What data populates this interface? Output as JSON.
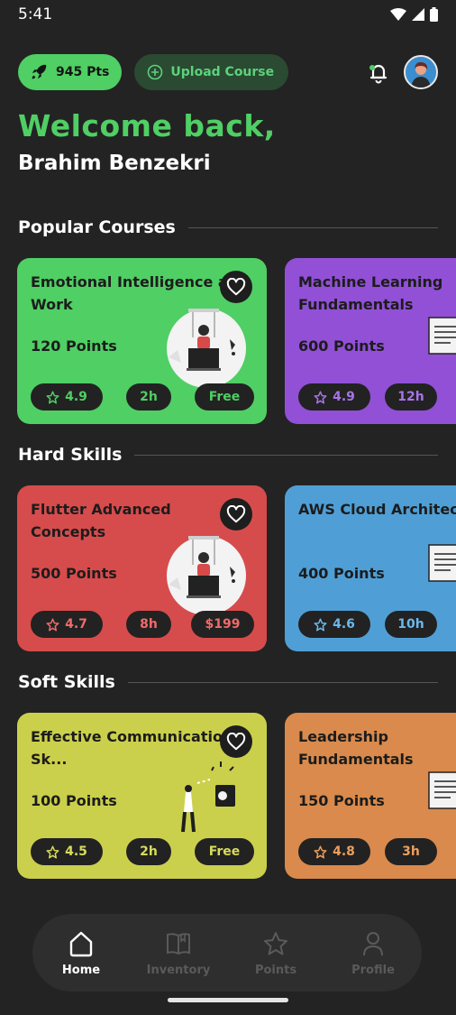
{
  "status": {
    "time": "5:41"
  },
  "header": {
    "points": "945 Pts",
    "upload_label": "Upload Course"
  },
  "welcome": {
    "greeting": "Welcome back,",
    "name": "Brahim Benzekri"
  },
  "sections": [
    {
      "title": "Popular Courses",
      "cards": [
        {
          "title": "Emotional Intelligence at Work",
          "points": "120 Points",
          "rating": "4.9",
          "duration": "2h",
          "price": "Free",
          "color": "#4fcf64",
          "badge_text": "#4fcf64"
        },
        {
          "title": "Machine Learning Fundamentals",
          "points": "600 Points",
          "rating": "4.9",
          "duration": "12h",
          "price": "",
          "color": "#9150d6",
          "badge_text": "#a874e8"
        }
      ]
    },
    {
      "title": "Hard Skills",
      "cards": [
        {
          "title": "Flutter Advanced Concepts",
          "points": "500 Points",
          "rating": "4.7",
          "duration": "8h",
          "price": "$199",
          "color": "#d64c4c",
          "badge_text": "#f16a6a"
        },
        {
          "title": "AWS Cloud Architecture",
          "points": "400 Points",
          "rating": "4.6",
          "duration": "10h",
          "price": "",
          "color": "#4f9fd6",
          "badge_text": "#6ab8ec"
        }
      ]
    },
    {
      "title": "Soft Skills",
      "cards": [
        {
          "title": "Effective Communication Sk...",
          "points": "100 Points",
          "rating": "4.5",
          "duration": "2h",
          "price": "Free",
          "color": "#cbd04c",
          "badge_text": "#d8dc5a"
        },
        {
          "title": "Leadership Fundamentals",
          "points": "150 Points",
          "rating": "4.8",
          "duration": "3h",
          "price": "",
          "color": "#d98a4c",
          "badge_text": "#ee9e5c"
        }
      ]
    }
  ],
  "nav": [
    {
      "label": "Home",
      "icon": "home-icon"
    },
    {
      "label": "Inventory",
      "icon": "book-icon"
    },
    {
      "label": "Points",
      "icon": "star-icon"
    },
    {
      "label": "Profile",
      "icon": "person-icon"
    }
  ]
}
